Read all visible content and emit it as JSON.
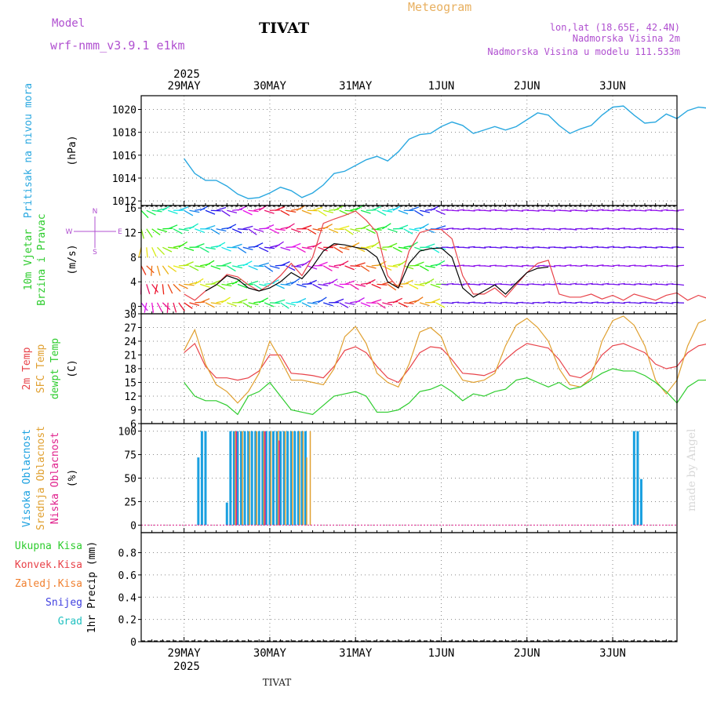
{
  "header": {
    "model_label": "Model",
    "model_name": "wrf-nmm_v3.9.1  e1km",
    "station": "TIVAT",
    "product": "Meteogram",
    "lonlat": "lon,lat (18.65E, 42.4N)",
    "elevation": "Nadmorska Visina 2m",
    "model_elevation": "Nadmorska Visina u modelu 111.533m",
    "footer_station": "TIVAT",
    "watermark": "made by Angel",
    "year_top": "2025",
    "year_bottom": "2025"
  },
  "colors": {
    "pressure": "#2aa8e0",
    "temp2m": "#e8434a",
    "sfctemp": "#e0a030",
    "dewpt": "#2ecc2e",
    "cloud_high": "#1aa0e0",
    "cloud_mid": "#e0a030",
    "cloud_low": "#e0208c",
    "wind_speed": "#000000",
    "wind_gust": "#e8434a",
    "grid": "#888888"
  },
  "chart_data": [
    {
      "type": "line",
      "id": "pressure",
      "ylabel": "(hPa)",
      "side_labels": [
        "Pritisak na nivou mora"
      ],
      "ylim": [
        1011.6,
        1021.2
      ],
      "yticks": [
        1012,
        1014,
        1016,
        1018,
        1020
      ],
      "x_days": [
        "29MAY",
        "30MAY",
        "31MAY",
        "1JUN",
        "2JUN",
        "3JUN"
      ],
      "series": [
        {
          "x": [
            0,
            3,
            6,
            9,
            12,
            15,
            18,
            21,
            24,
            27,
            30,
            33,
            36,
            39,
            42,
            45,
            48,
            51,
            54,
            57,
            60,
            63,
            66,
            69,
            72,
            75,
            78,
            81,
            84,
            87,
            90,
            93,
            96,
            99,
            102,
            105,
            108,
            111,
            114,
            117,
            120,
            123,
            126,
            129,
            132,
            135,
            138,
            141,
            144,
            147,
            150
          ],
          "values": [
            1015.7,
            1014.4,
            1013.8,
            1013.8,
            1013.3,
            1012.6,
            1012.2,
            1012.3,
            1012.7,
            1013.2,
            1012.9,
            1012.3,
            1012.7,
            1013.4,
            1014.4,
            1014.6,
            1015.1,
            1015.6,
            1015.9,
            1015.5,
            1016.3,
            1017.4,
            1017.8,
            1017.9,
            1018.5,
            1018.9,
            1018.6,
            1017.9,
            1018.2,
            1018.5,
            1018.2,
            1018.5,
            1019.1,
            1019.7,
            1019.5,
            1018.6,
            1017.9,
            1018.3,
            1018.6,
            1019.5,
            1020.2,
            1020.3,
            1019.5,
            1018.8,
            1018.9,
            1019.6,
            1019.2,
            1019.9,
            1020.2,
            1020.1,
            1019.7
          ]
        }
      ]
    },
    {
      "type": "line",
      "id": "wind",
      "ylabel": "(m/s)",
      "side_labels": [
        "10m Vjetar",
        "Brzina i Pravac"
      ],
      "compass": [
        "N",
        "W",
        "E",
        "S"
      ],
      "ylim": [
        -1.2,
        16.4
      ],
      "yticks": [
        0,
        4,
        8,
        12,
        16
      ],
      "series": [
        {
          "name": "speed",
          "x": [
            6,
            9,
            12,
            15,
            18,
            21,
            24,
            27,
            30,
            33,
            36,
            39,
            42,
            45,
            48,
            51,
            54,
            57,
            60,
            63,
            66,
            69,
            72,
            75,
            78,
            81,
            84,
            87,
            90,
            93,
            96,
            99,
            102
          ],
          "values": [
            2.5,
            3.5,
            5.0,
            4.4,
            3.0,
            2.5,
            3.0,
            4.0,
            5.5,
            4.5,
            6.5,
            9.0,
            10.2,
            10.0,
            9.6,
            9.3,
            8.0,
            4.0,
            3.0,
            7.0,
            9.0,
            9.4,
            9.5,
            8.0,
            3.0,
            1.5,
            2.5,
            3.5,
            2.0,
            3.8,
            5.5,
            6.2,
            6.4
          ]
        },
        {
          "name": "gust",
          "x": [
            0,
            3,
            6,
            9,
            12,
            15,
            18,
            21,
            24,
            27,
            30,
            33,
            36,
            39,
            42,
            45,
            48,
            51,
            54,
            57,
            60,
            63,
            66,
            69,
            72,
            75,
            78,
            81,
            84,
            87,
            90,
            93,
            96,
            99,
            102,
            105,
            108,
            111,
            114,
            117,
            120,
            123,
            126,
            129,
            132,
            135,
            138,
            141,
            144,
            147,
            150
          ],
          "values": [
            2.0,
            1.0,
            2.5,
            3.5,
            5.2,
            4.8,
            3.5,
            2.5,
            3.5,
            5.0,
            7.0,
            5.0,
            8.0,
            13.5,
            14.2,
            14.8,
            15.5,
            14.0,
            12.0,
            5.0,
            3.0,
            9.0,
            12.0,
            12.5,
            12.5,
            11.0,
            5.0,
            2.0,
            2.0,
            3.0,
            1.5,
            3.5,
            5.5,
            7.0,
            7.5,
            2.0,
            1.5,
            1.5,
            2.0,
            1.2,
            1.8,
            1.0,
            2.0,
            1.5,
            1.0,
            1.8,
            2.2,
            1.0,
            1.8,
            1.2,
            1.5
          ]
        }
      ]
    },
    {
      "type": "line",
      "id": "temperature",
      "ylabel": "(C)",
      "side_labels": [
        "2m Temp",
        "SFC Temp",
        "dewpt Temp"
      ],
      "ylim": [
        6,
        30
      ],
      "yticks": [
        6,
        9,
        12,
        15,
        18,
        21,
        24,
        27,
        30
      ],
      "series": [
        {
          "name": "2m Temp",
          "x": [
            0,
            3,
            6,
            9,
            12,
            15,
            18,
            21,
            24,
            27,
            30,
            33,
            36,
            39,
            42,
            45,
            48,
            51,
            54,
            57,
            60,
            63,
            66,
            69,
            72,
            75,
            78,
            81,
            84,
            87,
            90,
            93,
            96,
            99,
            102,
            105,
            108,
            111,
            114,
            117,
            120,
            123,
            126,
            129,
            132,
            135,
            138,
            141,
            144,
            147,
            150
          ],
          "values": [
            21.5,
            23.5,
            18.5,
            16.0,
            16.0,
            15.5,
            16.0,
            17.5,
            21.0,
            21.0,
            17.0,
            16.8,
            16.5,
            16.0,
            18.5,
            22.0,
            22.8,
            21.5,
            18.5,
            16.0,
            15.0,
            18.0,
            21.5,
            22.8,
            22.5,
            20.0,
            17.0,
            16.8,
            16.5,
            17.5,
            20.0,
            22.0,
            23.5,
            23.0,
            22.5,
            20.0,
            16.5,
            16.0,
            17.5,
            21.0,
            23.0,
            23.5,
            22.5,
            21.5,
            19.0,
            18.0,
            18.5,
            21.5,
            23.0,
            23.5,
            24.0
          ]
        },
        {
          "name": "SFC Temp",
          "x": [
            0,
            3,
            6,
            9,
            12,
            15,
            18,
            21,
            24,
            27,
            30,
            33,
            36,
            39,
            42,
            45,
            48,
            51,
            54,
            57,
            60,
            63,
            66,
            69,
            72,
            75,
            78,
            81,
            84,
            87,
            90,
            93,
            96,
            99,
            102,
            105,
            108,
            111,
            114,
            117,
            120,
            123,
            126,
            129,
            132,
            135,
            138,
            141,
            144,
            147,
            150
          ],
          "values": [
            22.0,
            26.5,
            19.0,
            14.5,
            13.0,
            10.5,
            13.0,
            17.0,
            24.0,
            20.0,
            15.5,
            15.5,
            15.0,
            14.5,
            18.0,
            25.0,
            27.2,
            23.5,
            17.0,
            15.0,
            14.0,
            19.0,
            26.0,
            27.0,
            25.0,
            19.0,
            15.5,
            15.0,
            15.5,
            17.0,
            23.0,
            27.5,
            29.0,
            27.0,
            24.0,
            18.0,
            14.5,
            14.0,
            16.0,
            24.0,
            28.5,
            29.5,
            27.5,
            23.0,
            15.5,
            12.5,
            15.5,
            23.0,
            28.0,
            29.0,
            29.0
          ]
        },
        {
          "name": "dewpt Temp",
          "x": [
            0,
            3,
            6,
            9,
            12,
            15,
            18,
            21,
            24,
            27,
            30,
            33,
            36,
            39,
            42,
            45,
            48,
            51,
            54,
            57,
            60,
            63,
            66,
            69,
            72,
            75,
            78,
            81,
            84,
            87,
            90,
            93,
            96,
            99,
            102,
            105,
            108,
            111,
            114,
            117,
            120,
            123,
            126,
            129,
            132,
            135,
            138,
            141,
            144,
            147,
            150
          ],
          "values": [
            15.0,
            12.0,
            11.0,
            11.0,
            10.0,
            8.0,
            12.0,
            13.0,
            15.0,
            12.0,
            9.0,
            8.5,
            8.0,
            10.0,
            12.0,
            12.5,
            13.0,
            12.0,
            8.5,
            8.5,
            9.0,
            10.5,
            13.0,
            13.5,
            14.5,
            13.0,
            11.0,
            12.5,
            12.0,
            13.0,
            13.5,
            15.5,
            16.0,
            15.0,
            14.0,
            15.0,
            13.5,
            14.0,
            15.5,
            17.0,
            18.0,
            17.5,
            17.5,
            16.5,
            15.0,
            13.0,
            10.5,
            14.0,
            15.5,
            15.5,
            15.5
          ]
        }
      ]
    },
    {
      "type": "bar",
      "id": "clouds",
      "ylabel": "(%)",
      "side_labels": [
        "Visoka Oblacnost",
        "Srednja Oblacnost",
        "Niska Oblacnost"
      ],
      "ylim": [
        -8,
        108
      ],
      "yticks": [
        0,
        25,
        50,
        75,
        100
      ],
      "series": [
        {
          "name": "Visoka",
          "x": [
            4,
            5,
            6,
            12,
            13,
            14,
            15,
            16,
            17,
            18,
            19,
            20,
            21,
            22,
            23,
            24,
            25,
            26,
            27,
            28,
            29,
            30,
            31,
            32,
            33,
            34,
            126,
            127,
            128
          ],
          "values": [
            72,
            100,
            100,
            24,
            100,
            100,
            100,
            100,
            100,
            100,
            100,
            100,
            100,
            100,
            100,
            100,
            100,
            100,
            100,
            100,
            100,
            100,
            100,
            100,
            100,
            100,
            100,
            100,
            49
          ]
        },
        {
          "name": "Srednja",
          "x": [
            14,
            16,
            18,
            20,
            22,
            24,
            26,
            28,
            30,
            32,
            33,
            34,
            35
          ],
          "values": [
            100,
            100,
            100,
            100,
            100,
            100,
            100,
            100,
            100,
            100,
            100,
            72,
            100
          ]
        },
        {
          "name": "Niska",
          "x": [
            14,
            22,
            26
          ],
          "values": [
            100,
            100,
            90
          ]
        }
      ]
    },
    {
      "type": "bar",
      "id": "precip",
      "ylabel": "1hr Precip (mm)",
      "side_labels": [
        "Ukupna Kisa",
        "Konvek.Kisa",
        "Zaledj.Kisa",
        "Snijeg",
        "Grad"
      ],
      "ylim": [
        0,
        0.98
      ],
      "yticks": [
        0,
        0.2,
        0.4,
        0.6,
        0.8
      ],
      "series": []
    }
  ],
  "x_axis": {
    "start_hour": -12,
    "end_hour": 138,
    "day_hours": [
      0,
      24,
      48,
      72,
      96,
      120
    ]
  }
}
